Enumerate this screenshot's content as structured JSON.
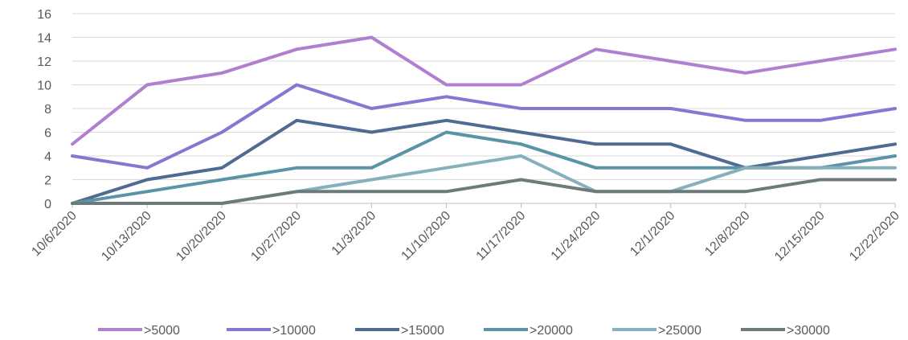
{
  "chart_data": {
    "type": "line",
    "title": "",
    "xlabel": "",
    "ylabel": "",
    "categories": [
      "10/6/2020",
      "10/13/2020",
      "10/20/2020",
      "10/27/2020",
      "11/3/2020",
      "11/10/2020",
      "11/17/2020",
      "11/24/2020",
      "12/1/2020",
      "12/8/2020",
      "12/15/2020",
      "12/22/2020"
    ],
    "ylim": [
      0,
      16
    ],
    "yticks": [
      0,
      2,
      4,
      6,
      8,
      10,
      12,
      14,
      16
    ],
    "grid": true,
    "legend_position": "bottom",
    "series": [
      {
        "name": ">5000",
        "color": "#B07FD0",
        "values": [
          5,
          10,
          11,
          13,
          14,
          10,
          10,
          13,
          12,
          11,
          12,
          13
        ]
      },
      {
        "name": ">10000",
        "color": "#8777D2",
        "values": [
          4,
          3,
          6,
          10,
          8,
          9,
          8,
          8,
          8,
          7,
          7,
          8
        ]
      },
      {
        "name": ">15000",
        "color": "#4E6B93",
        "values": [
          0,
          2,
          3,
          7,
          6,
          7,
          6,
          5,
          5,
          3,
          4,
          5
        ]
      },
      {
        "name": ">20000",
        "color": "#5B93A9",
        "values": [
          0,
          1,
          2,
          3,
          3,
          6,
          5,
          3,
          3,
          3,
          3,
          4
        ]
      },
      {
        "name": ">25000",
        "color": "#86B0BC",
        "values": [
          0,
          0,
          0,
          1,
          2,
          3,
          4,
          1,
          1,
          3,
          3,
          3
        ]
      },
      {
        "name": ">30000",
        "color": "#6B7B7A",
        "values": [
          0,
          0,
          0,
          1,
          1,
          1,
          2,
          1,
          1,
          1,
          2,
          2
        ]
      }
    ]
  }
}
